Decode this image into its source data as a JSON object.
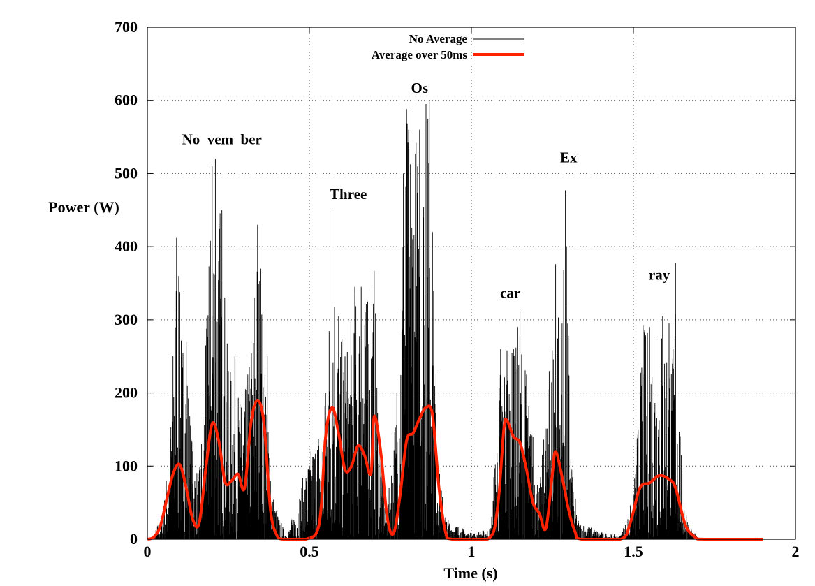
{
  "chart_data": {
    "type": "line",
    "xlabel": "Time (s)",
    "ylabel": "Power (W)",
    "xlim": [
      0,
      2
    ],
    "ylim": [
      0,
      700
    ],
    "xticks": [
      0,
      0.5,
      1,
      1.5,
      2
    ],
    "xtick_labels": [
      "0",
      "0.5",
      "1",
      "1.5",
      "2"
    ],
    "yticks": [
      0,
      100,
      200,
      300,
      400,
      500,
      600,
      700
    ],
    "ytick_labels": [
      "0",
      "100",
      "200",
      "300",
      "400",
      "500",
      "600",
      "700"
    ],
    "grid": true,
    "legend_position": "top-center",
    "colors": {
      "raw": "#000000",
      "average": "#ff2200"
    },
    "series": [
      {
        "name": "No Average",
        "style": "thin-black-spikes",
        "envelope_peaks": [
          [
            0.02,
            5
          ],
          [
            0.05,
            45
          ],
          [
            0.07,
            150
          ],
          [
            0.09,
            412
          ],
          [
            0.1,
            338
          ],
          [
            0.11,
            255
          ],
          [
            0.12,
            270
          ],
          [
            0.14,
            120
          ],
          [
            0.16,
            90
          ],
          [
            0.18,
            265
          ],
          [
            0.19,
            373
          ],
          [
            0.2,
            510
          ],
          [
            0.21,
            520
          ],
          [
            0.23,
            450
          ],
          [
            0.25,
            230
          ],
          [
            0.27,
            250
          ],
          [
            0.29,
            180
          ],
          [
            0.31,
            225
          ],
          [
            0.33,
            330
          ],
          [
            0.34,
            430
          ],
          [
            0.35,
            370
          ],
          [
            0.37,
            250
          ],
          [
            0.38,
            80
          ],
          [
            0.4,
            40
          ],
          [
            0.43,
            3
          ],
          [
            0.55,
            200
          ],
          [
            0.57,
            448
          ],
          [
            0.59,
            305
          ],
          [
            0.61,
            250
          ],
          [
            0.64,
            345
          ],
          [
            0.66,
            345
          ],
          [
            0.68,
            325
          ],
          [
            0.7,
            367
          ],
          [
            0.72,
            110
          ],
          [
            0.74,
            40
          ],
          [
            0.77,
            200
          ],
          [
            0.79,
            500
          ],
          [
            0.8,
            588
          ],
          [
            0.82,
            590
          ],
          [
            0.84,
            560
          ],
          [
            0.86,
            595
          ],
          [
            0.87,
            600
          ],
          [
            0.88,
            420
          ],
          [
            0.9,
            100
          ],
          [
            0.92,
            30
          ],
          [
            1.0,
            8
          ],
          [
            1.06,
            15
          ],
          [
            1.09,
            260
          ],
          [
            1.11,
            258
          ],
          [
            1.13,
            260
          ],
          [
            1.15,
            315
          ],
          [
            1.17,
            225
          ],
          [
            1.19,
            140
          ],
          [
            1.21,
            70
          ],
          [
            1.24,
            230
          ],
          [
            1.26,
            376
          ],
          [
            1.28,
            295
          ],
          [
            1.29,
            477
          ],
          [
            1.31,
            95
          ],
          [
            1.33,
            25
          ],
          [
            1.4,
            10
          ],
          [
            1.46,
            5
          ],
          [
            1.5,
            60
          ],
          [
            1.53,
            292
          ],
          [
            1.55,
            290
          ],
          [
            1.57,
            278
          ],
          [
            1.59,
            305
          ],
          [
            1.61,
            295
          ],
          [
            1.62,
            240
          ],
          [
            1.63,
            378
          ],
          [
            1.65,
            90
          ],
          [
            1.67,
            20
          ],
          [
            1.7,
            2
          ]
        ]
      },
      {
        "name": "Average over 50ms",
        "style": "thick-red-line",
        "points": [
          [
            0.0,
            0
          ],
          [
            0.02,
            3
          ],
          [
            0.04,
            18
          ],
          [
            0.06,
            55
          ],
          [
            0.08,
            90
          ],
          [
            0.1,
            102
          ],
          [
            0.12,
            70
          ],
          [
            0.14,
            27
          ],
          [
            0.16,
            22
          ],
          [
            0.18,
            95
          ],
          [
            0.2,
            158
          ],
          [
            0.22,
            135
          ],
          [
            0.24,
            78
          ],
          [
            0.26,
            80
          ],
          [
            0.28,
            89
          ],
          [
            0.3,
            70
          ],
          [
            0.32,
            160
          ],
          [
            0.34,
            190
          ],
          [
            0.36,
            158
          ],
          [
            0.38,
            40
          ],
          [
            0.4,
            5
          ],
          [
            0.42,
            0
          ],
          [
            0.49,
            0
          ],
          [
            0.53,
            20
          ],
          [
            0.55,
            140
          ],
          [
            0.57,
            180
          ],
          [
            0.59,
            145
          ],
          [
            0.61,
            95
          ],
          [
            0.63,
            100
          ],
          [
            0.65,
            128
          ],
          [
            0.67,
            115
          ],
          [
            0.69,
            90
          ],
          [
            0.7,
            168
          ],
          [
            0.72,
            120
          ],
          [
            0.74,
            30
          ],
          [
            0.76,
            8
          ],
          [
            0.78,
            60
          ],
          [
            0.8,
            135
          ],
          [
            0.82,
            145
          ],
          [
            0.84,
            165
          ],
          [
            0.86,
            180
          ],
          [
            0.88,
            170
          ],
          [
            0.9,
            70
          ],
          [
            0.92,
            10
          ],
          [
            0.94,
            0
          ],
          [
            1.05,
            0
          ],
          [
            1.08,
            40
          ],
          [
            1.1,
            150
          ],
          [
            1.11,
            162
          ],
          [
            1.13,
            140
          ],
          [
            1.15,
            132
          ],
          [
            1.17,
            95
          ],
          [
            1.19,
            50
          ],
          [
            1.21,
            35
          ],
          [
            1.23,
            15
          ],
          [
            1.25,
            90
          ],
          [
            1.26,
            120
          ],
          [
            1.28,
            85
          ],
          [
            1.3,
            40
          ],
          [
            1.32,
            10
          ],
          [
            1.34,
            0
          ],
          [
            1.46,
            0
          ],
          [
            1.49,
            22
          ],
          [
            1.52,
            70
          ],
          [
            1.55,
            77
          ],
          [
            1.58,
            87
          ],
          [
            1.61,
            82
          ],
          [
            1.63,
            70
          ],
          [
            1.66,
            20
          ],
          [
            1.69,
            3
          ],
          [
            1.72,
            0
          ],
          [
            1.9,
            0
          ]
        ]
      }
    ],
    "annotations": [
      {
        "text": "No  vem  ber",
        "x": 0.23,
        "y": 540
      },
      {
        "text": "Three",
        "x": 0.62,
        "y": 465
      },
      {
        "text": "Os",
        "x": 0.84,
        "y": 610
      },
      {
        "text": "car",
        "x": 1.12,
        "y": 330
      },
      {
        "text": "Ex",
        "x": 1.3,
        "y": 515
      },
      {
        "text": "ray",
        "x": 1.58,
        "y": 355
      }
    ]
  }
}
